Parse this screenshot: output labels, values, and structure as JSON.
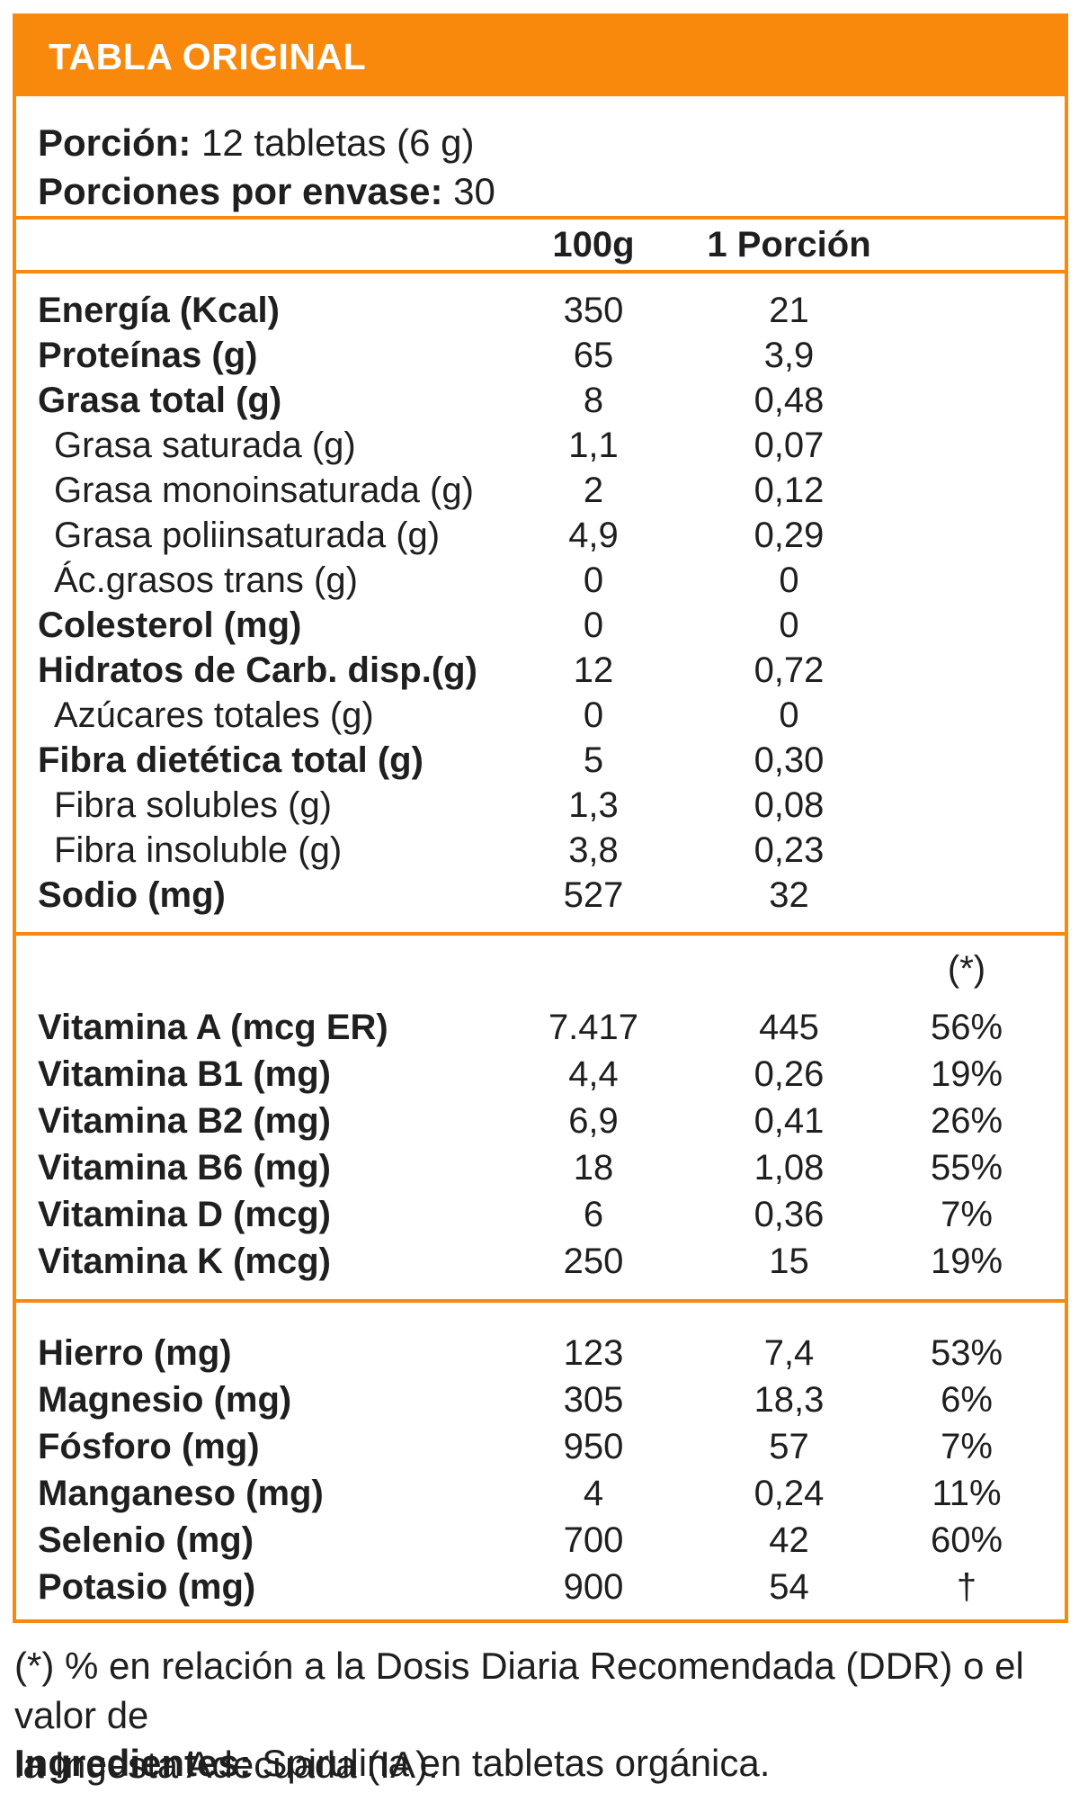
{
  "title": "TABLA ORIGINAL",
  "serving": {
    "portion_label": "Porción:",
    "portion_value": " 12 tabletas (6 g)",
    "servings_label": "Porciones por envase:",
    "servings_value": " 30"
  },
  "columns": {
    "col_100g": "100g",
    "col_portion": "1 Porción",
    "col_pct": "(*)"
  },
  "main_rows": [
    {
      "label": "Energía (Kcal)",
      "v100": "350",
      "vp": "21"
    },
    {
      "label": "Proteínas (g)",
      "v100": "65",
      "vp": "3,9"
    },
    {
      "label": "Grasa total (g)",
      "v100": "8",
      "vp": "0,48"
    },
    {
      "label": "Grasa saturada (g)",
      "v100": "1,1",
      "vp": "0,07"
    },
    {
      "label": "Grasa monoinsaturada (g)",
      "v100": "2",
      "vp": "0,12"
    },
    {
      "label": "Grasa poliinsaturada (g)",
      "v100": "4,9",
      "vp": "0,29"
    },
    {
      "label": "Ác.grasos trans (g)",
      "v100": "0",
      "vp": "0"
    },
    {
      "label": "Colesterol (mg)",
      "v100": "0",
      "vp": "0"
    },
    {
      "label": "Hidratos de Carb. disp.(g)",
      "v100": "12",
      "vp": "0,72"
    },
    {
      "label": "Azúcares totales (g)",
      "v100": "0",
      "vp": "0"
    },
    {
      "label": "Fibra dietética total (g)",
      "v100": "5",
      "vp": "0,30"
    },
    {
      "label": "Fibra solubles (g)",
      "v100": "1,3",
      "vp": "0,08"
    },
    {
      "label": "Fibra insoluble (g)",
      "v100": "3,8",
      "vp": "0,23"
    },
    {
      "label": "Sodio (mg)",
      "v100": "527",
      "vp": "32"
    }
  ],
  "vitamin_rows": [
    {
      "label": "Vitamina A (mcg ER)",
      "v100": "7.417",
      "vp": "445",
      "pct": "56%"
    },
    {
      "label": "Vitamina B1 (mg)",
      "v100": "4,4",
      "vp": "0,26",
      "pct": "19%"
    },
    {
      "label": "Vitamina B2 (mg)",
      "v100": "6,9",
      "vp": "0,41",
      "pct": "26%"
    },
    {
      "label": "Vitamina B6 (mg)",
      "v100": "18",
      "vp": "1,08",
      "pct": "55%"
    },
    {
      "label": "Vitamina D (mcg)",
      "v100": "6",
      "vp": "0,36",
      "pct": "7%"
    },
    {
      "label": "Vitamina K (mcg)",
      "v100": "250",
      "vp": "15",
      "pct": "19%"
    }
  ],
  "mineral_rows": [
    {
      "label": "Hierro (mg)",
      "v100": "123",
      "vp": "7,4",
      "pct": "53%"
    },
    {
      "label": "Magnesio (mg)",
      "v100": "305",
      "vp": "18,3",
      "pct": "6%"
    },
    {
      "label": "Fósforo (mg)",
      "v100": "950",
      "vp": "57",
      "pct": "7%"
    },
    {
      "label": "Manganeso (mg)",
      "v100": "4",
      "vp": "0,24",
      "pct": "11%"
    },
    {
      "label": "Selenio (mg)",
      "v100": "700",
      "vp": "42",
      "pct": "60%"
    },
    {
      "label": "Potasio (mg)",
      "v100": "900",
      "vp": "54",
      "pct": "†"
    }
  ],
  "footnote": {
    "line1": "(*) % en relación a la Dosis Diaria Recomendada (DDR) o el valor de",
    "line2": "la Ingesta Adecuada (IA)."
  },
  "ingredients": {
    "label": "Ingredientes:",
    "value": " Spirulina en tabletas orgánica."
  },
  "colors": {
    "accent": "#F8890D",
    "text": "#1F1F1F",
    "title_text": "#FFFFFF"
  }
}
